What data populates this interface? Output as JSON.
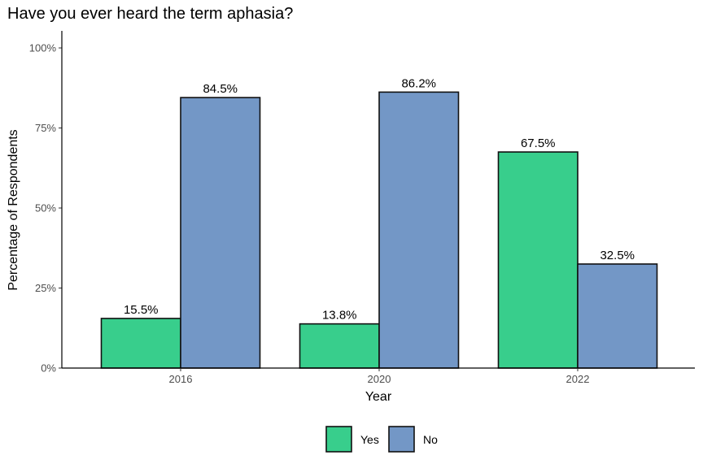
{
  "chart_data": {
    "type": "bar",
    "title": "Have you ever heard the term aphasia?",
    "xlabel": "Year",
    "ylabel": "Percentage of Respondents",
    "categories": [
      "2016",
      "2020",
      "2022"
    ],
    "series": [
      {
        "name": "Yes",
        "values": [
          15.5,
          13.8,
          67.5
        ],
        "color": "#38CE8C"
      },
      {
        "name": "No",
        "values": [
          84.5,
          86.2,
          32.5
        ],
        "color": "#7397C6"
      }
    ],
    "data_labels": [
      [
        "15.5%",
        "13.8%",
        "67.5%"
      ],
      [
        "84.5%",
        "86.2%",
        "32.5%"
      ]
    ],
    "ylim": [
      0,
      100
    ],
    "yticks": [
      0,
      25,
      50,
      75,
      100
    ],
    "ytick_labels": [
      "0%",
      "25%",
      "50%",
      "75%",
      "100%"
    ],
    "grid": false,
    "legend_position": "bottom"
  }
}
